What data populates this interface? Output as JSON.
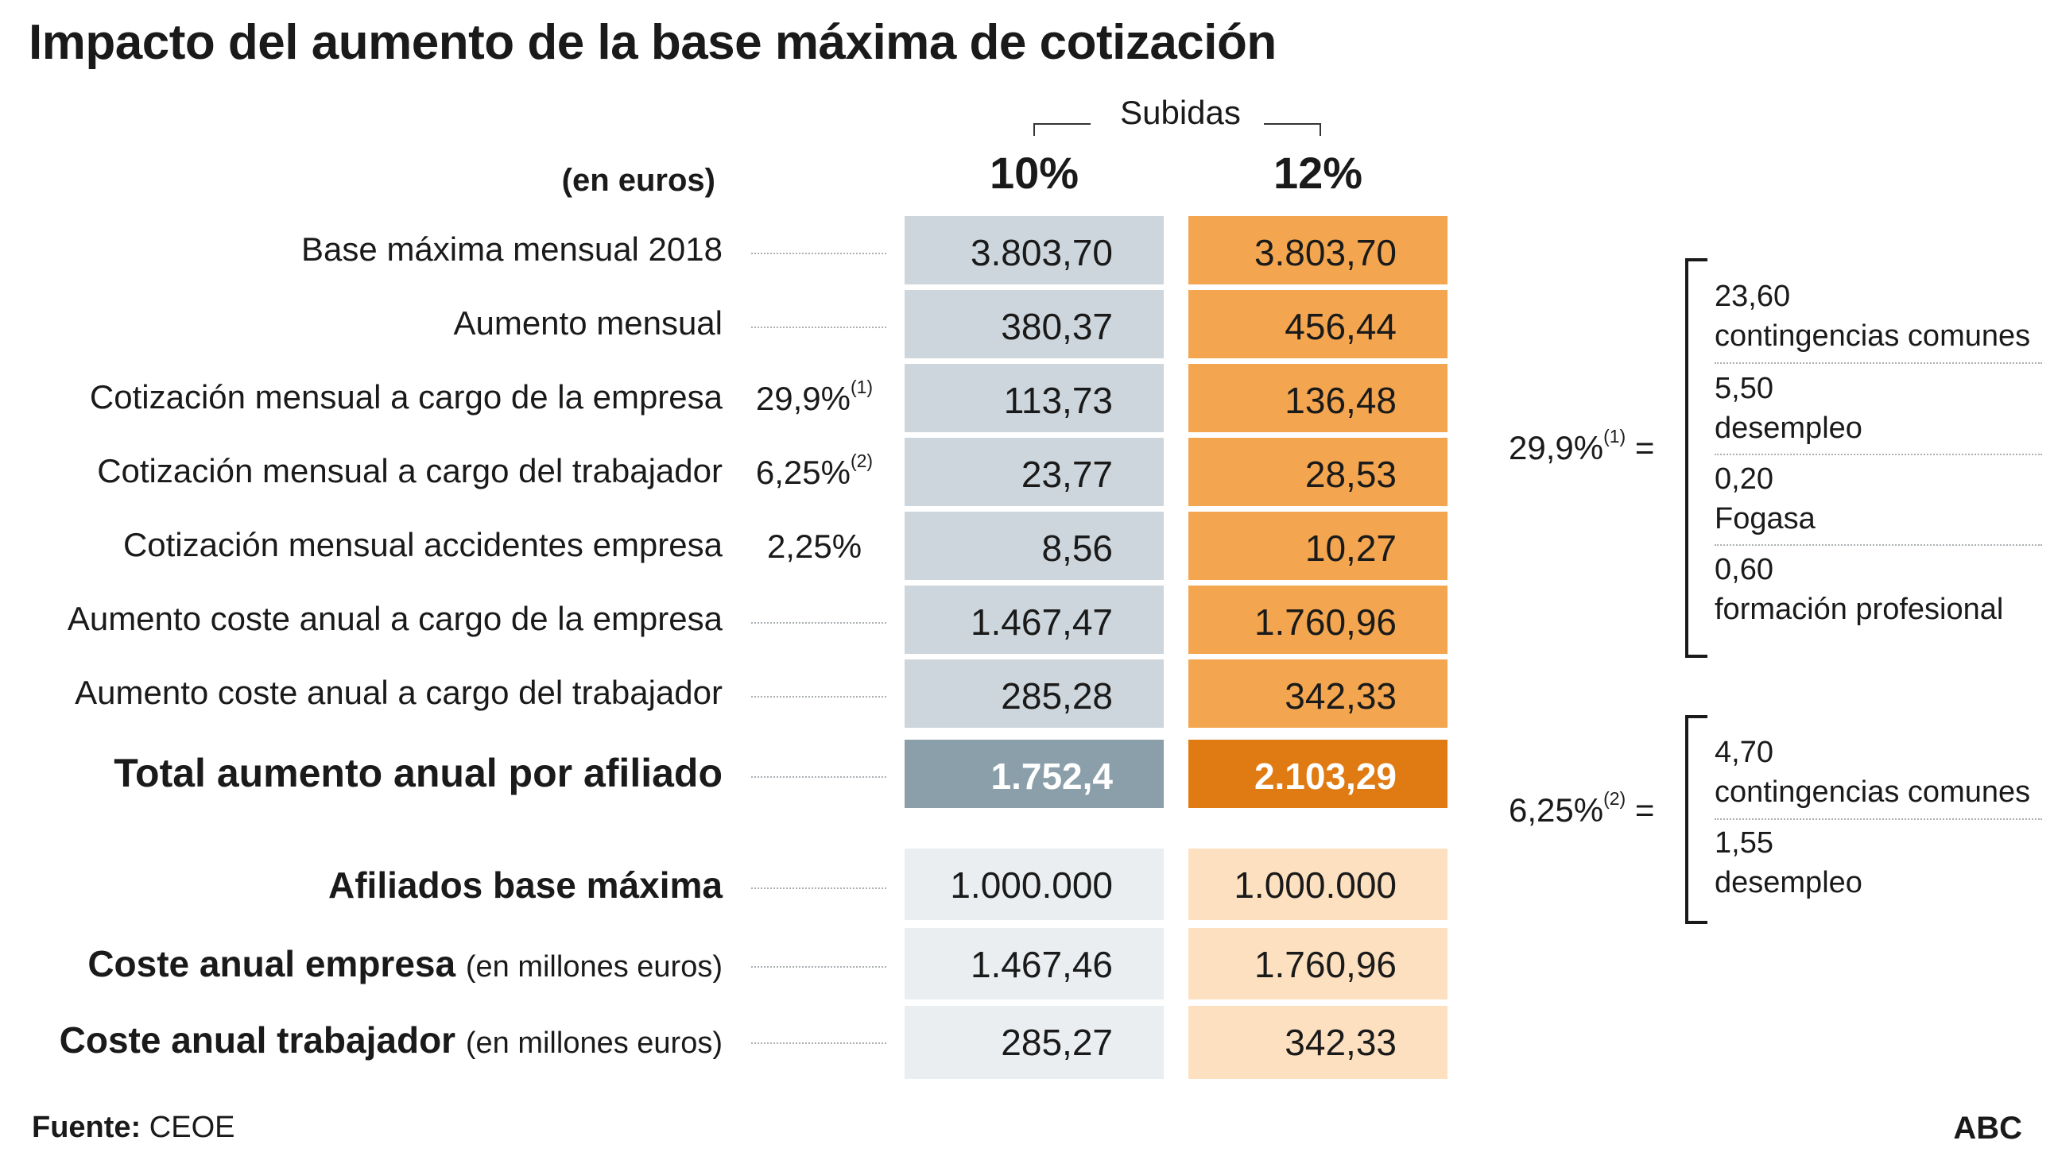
{
  "title": "Impacto del aumento de la base máxima de cotización",
  "units": "(en euros)",
  "header_group": "Subidas",
  "columns": [
    "10%",
    "12%"
  ],
  "rows": [
    {
      "label": "Base máxima mensual 2018",
      "rate": "",
      "v10": "3.803,70",
      "v12": "3.803,70"
    },
    {
      "label": "Aumento mensual",
      "rate": "",
      "v10": "380,37",
      "v12": "456,44"
    },
    {
      "label": "Cotización mensual a cargo de la empresa",
      "rate": "29,9%",
      "note": "(1)",
      "v10": "113,73",
      "v12": "136,48"
    },
    {
      "label": "Cotización mensual a cargo del trabajador",
      "rate": "6,25%",
      "note": "(2)",
      "v10": "23,77",
      "v12": "28,53"
    },
    {
      "label": "Cotización mensual accidentes empresa",
      "rate": "2,25%",
      "v10": "8,56",
      "v12": "10,27"
    },
    {
      "label": "Aumento coste anual a cargo de la empresa",
      "rate": "",
      "v10": "1.467,47",
      "v12": "1.760,96"
    },
    {
      "label": "Aumento coste anual a cargo del trabajador",
      "rate": "",
      "v10": "285,28",
      "v12": "342,33"
    }
  ],
  "total": {
    "label": "Total aumento anual por afiliado",
    "v10": "1.752,4",
    "v12": "2.103,29"
  },
  "bottom_rows": [
    {
      "label": "Afiliados base máxima",
      "sub": "",
      "v10": "1.000.000",
      "v12": "1.000.000"
    },
    {
      "label": "Coste anual empresa",
      "sub": "(en millones euros)",
      "v10": "1.467,46",
      "v12": "1.760,96"
    },
    {
      "label": "Coste anual trabajador",
      "sub": "(en millones euros)",
      "v10": "285,27",
      "v12": "342,33"
    }
  ],
  "breakdowns": [
    {
      "rate": "29,9%",
      "note": "(1)",
      "eq": "=",
      "items": [
        {
          "value": "23,60",
          "label": "contingencias comunes"
        },
        {
          "value": "5,50",
          "label": "desempleo"
        },
        {
          "value": "0,20",
          "label": "Fogasa"
        },
        {
          "value": "0,60",
          "label": "formación profesional"
        }
      ]
    },
    {
      "rate": "6,25%",
      "note": "(2)",
      "eq": "=",
      "items": [
        {
          "value": "4,70",
          "label": "contingencias comunes"
        },
        {
          "value": "1,55",
          "label": "desempleo"
        }
      ]
    }
  ],
  "source_label": "Fuente:",
  "source": "CEOE",
  "brand": "ABC",
  "colors": {
    "col10": "#cdd6dc",
    "col12": "#f3a64f",
    "total10": "#8a9fa9",
    "total12": "#e07a13",
    "light10": "#eaeef0",
    "light12": "#fde0c0"
  },
  "chart_data": {
    "type": "table",
    "title": "Impacto del aumento de la base máxima de cotización",
    "units": "(en euros)",
    "series": [
      {
        "name": "10%",
        "values": [
          3803.7,
          380.37,
          113.73,
          23.77,
          8.56,
          1467.47,
          285.28,
          1752.4,
          1000000,
          1467.46,
          285.27
        ]
      },
      {
        "name": "12%",
        "values": [
          3803.7,
          456.44,
          136.48,
          28.53,
          10.27,
          1760.96,
          342.33,
          2103.29,
          1000000,
          1760.96,
          342.33
        ]
      }
    ],
    "categories": [
      "Base máxima mensual 2018",
      "Aumento mensual",
      "Cotización mensual a cargo de la empresa",
      "Cotización mensual a cargo del trabajador",
      "Cotización mensual accidentes empresa",
      "Aumento coste anual a cargo de la empresa",
      "Aumento coste anual a cargo del trabajador",
      "Total aumento anual por afiliado",
      "Afiliados base máxima",
      "Coste anual empresa",
      "Coste anual trabajador"
    ]
  }
}
